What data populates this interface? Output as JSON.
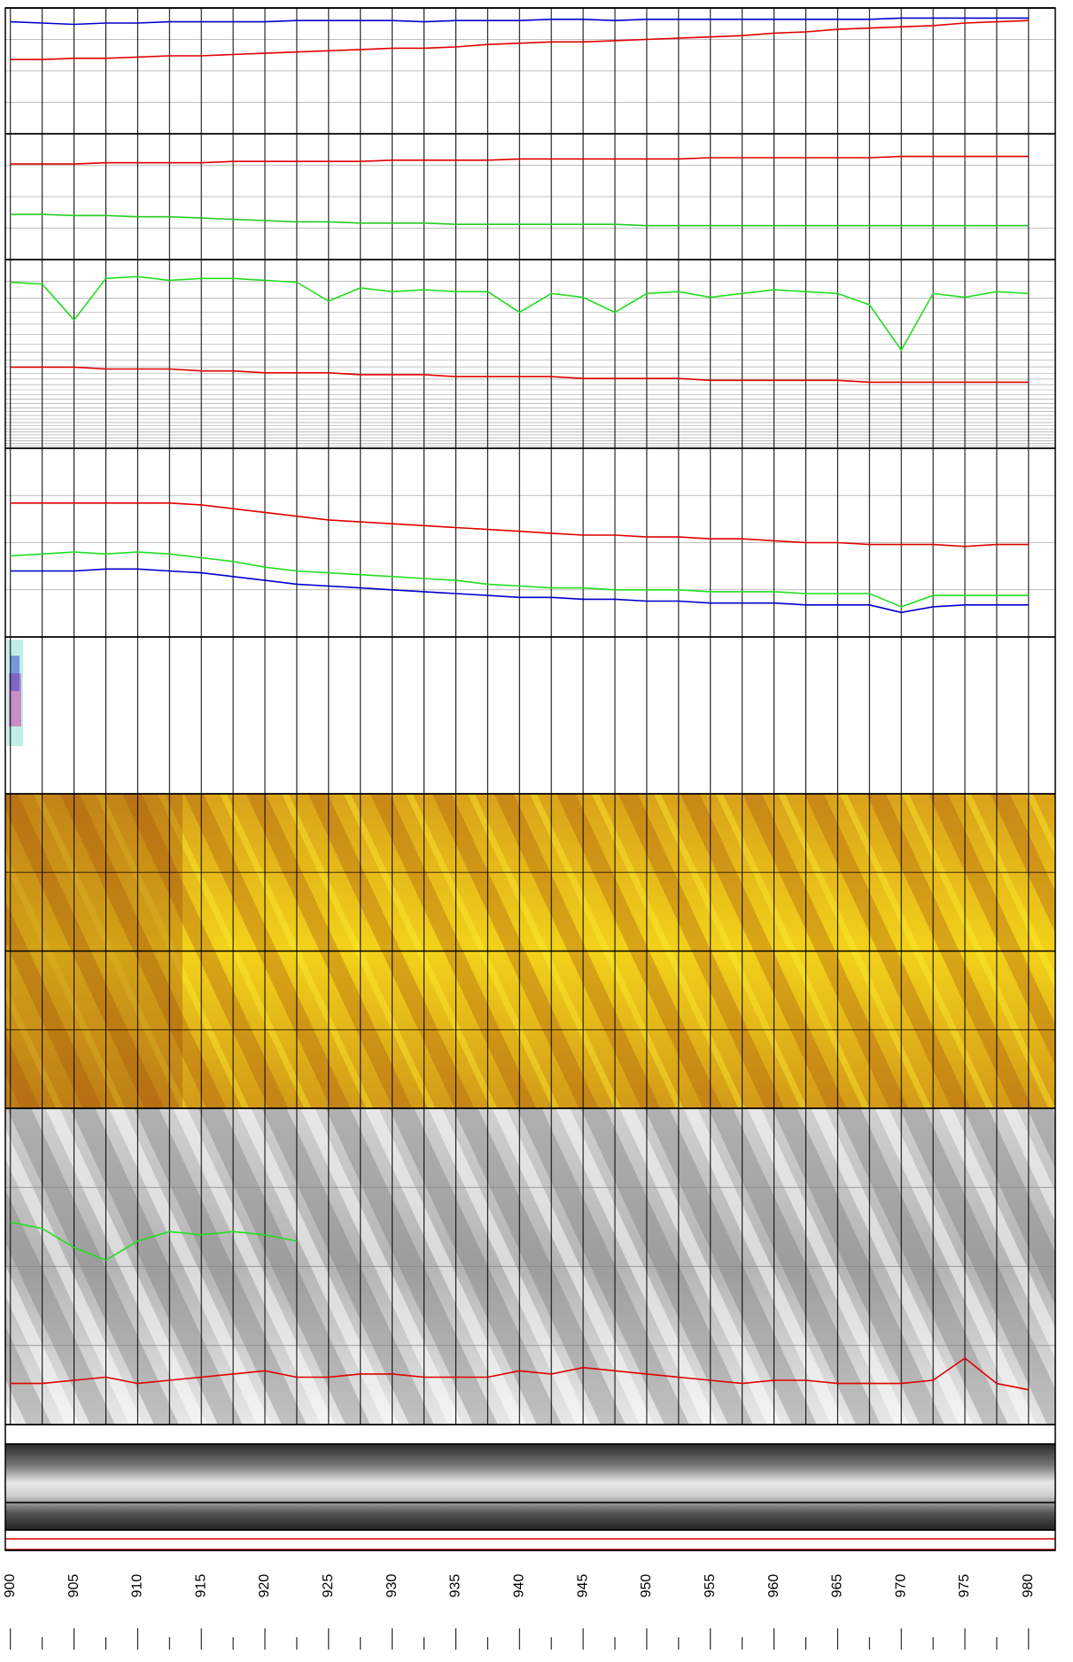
{
  "chart_data": {
    "type": "log",
    "xlim": [
      899.6,
      982.1
    ],
    "xticks": [
      900,
      905,
      910,
      915,
      920,
      925,
      930,
      935,
      940,
      945,
      950,
      955,
      960,
      965,
      970,
      975,
      980
    ],
    "xminorticks": [
      902.5,
      907.5,
      912.5,
      917.5,
      922.5,
      927.5,
      932.5,
      937.5,
      942.5,
      947.5,
      952.5,
      957.5,
      962.5,
      967.5,
      972.5,
      977.5
    ],
    "x": [
      900,
      902.5,
      905,
      907.5,
      910,
      912.5,
      915,
      917.5,
      920,
      922.5,
      925,
      927.5,
      930,
      932.5,
      935,
      937.5,
      940,
      942.5,
      945,
      947.5,
      950,
      952.5,
      955,
      957.5,
      960,
      962.5,
      965,
      967.5,
      970,
      972.5,
      975,
      977.5,
      980
    ],
    "tracks": [
      {
        "ylim": [
          0,
          100
        ],
        "series": [
          {
            "color": "#0000cc",
            "values": [
              89,
              88,
              87,
              88,
              88,
              89,
              89,
              89,
              89,
              90,
              90,
              90,
              90,
              89,
              90,
              90,
              90,
              91,
              91,
              90,
              91,
              91,
              91,
              91,
              91,
              91,
              91,
              91,
              92,
              92,
              92,
              92,
              92
            ]
          },
          {
            "color": "#e00000",
            "values": [
              59,
              59,
              60,
              60,
              61,
              62,
              62,
              63,
              64,
              65,
              66,
              67,
              68,
              68,
              69,
              71,
              72,
              73,
              73,
              74,
              75,
              76,
              77,
              78,
              80,
              81,
              83,
              84,
              85,
              86,
              88,
              89,
              90
            ]
          }
        ]
      },
      {
        "ylim": [
          0,
          100
        ],
        "series": [
          {
            "color": "#e00000",
            "values": [
              76,
              76,
              76,
              77,
              77,
              77,
              77,
              78,
              78,
              78,
              78,
              78,
              79,
              79,
              79,
              79,
              80,
              80,
              80,
              80,
              80,
              80,
              81,
              81,
              81,
              81,
              81,
              81,
              82,
              82,
              82,
              82,
              82
            ]
          },
          {
            "color": "#22cc22",
            "values": [
              36,
              36,
              35,
              35,
              34,
              34,
              33,
              32,
              31,
              30,
              30,
              29,
              29,
              29,
              28,
              28,
              28,
              28,
              28,
              28,
              27,
              27,
              27,
              27,
              27,
              27,
              27,
              27,
              27,
              27,
              27,
              27,
              27
            ]
          }
        ]
      },
      {
        "ylim": [
          0,
          100
        ],
        "series": [
          {
            "color": "#22dd22",
            "values": [
              88,
              87,
              68,
              90,
              91,
              89,
              90,
              90,
              89,
              88,
              78,
              85,
              83,
              84,
              83,
              83,
              72,
              82,
              80,
              72,
              82,
              83,
              80,
              82,
              84,
              83,
              82,
              76,
              52,
              82,
              80,
              83,
              82
            ]
          },
          {
            "color": "#e00000",
            "values": [
              43,
              43,
              43,
              42,
              42,
              42,
              41,
              41,
              40,
              40,
              40,
              39,
              39,
              39,
              38,
              38,
              38,
              38,
              37,
              37,
              37,
              37,
              36,
              36,
              36,
              36,
              36,
              35,
              35,
              35,
              35,
              35,
              35
            ]
          }
        ]
      },
      {
        "ylim": [
          0,
          100
        ],
        "series": [
          {
            "color": "#e00000",
            "values": [
              71,
              71,
              71,
              71,
              71,
              71,
              70,
              68,
              66,
              64,
              62,
              61,
              60,
              59,
              58,
              57,
              56,
              55,
              54,
              54,
              53,
              53,
              52,
              52,
              51,
              50,
              50,
              49,
              49,
              49,
              48,
              49,
              49
            ]
          },
          {
            "color": "#22dd22",
            "values": [
              43,
              44,
              45,
              44,
              45,
              44,
              42,
              40,
              37,
              35,
              34,
              33,
              32,
              31,
              30,
              28,
              27,
              26,
              26,
              25,
              25,
              25,
              24,
              24,
              24,
              23,
              23,
              23,
              16,
              22,
              22,
              22,
              22
            ]
          },
          {
            "color": "#0000cc",
            "values": [
              35,
              35,
              35,
              36,
              36,
              35,
              34,
              32,
              30,
              28,
              27,
              26,
              25,
              24,
              23,
              22,
              21,
              21,
              20,
              20,
              19,
              19,
              18,
              18,
              18,
              17,
              17,
              17,
              13,
              16,
              17,
              17,
              17
            ]
          }
        ]
      },
      {
        "ylim": [
          0,
          100
        ],
        "series": [
          {
            "color": "#22dd22",
            "values": [
              64,
              62,
              56,
              52,
              58,
              61,
              60,
              61,
              60,
              58,
              null,
              null,
              null,
              null,
              null,
              null,
              null,
              null,
              null,
              null,
              null,
              null,
              null,
              null,
              null,
              null,
              null,
              null,
              null,
              null,
              null,
              null,
              null
            ]
          },
          {
            "color": "#e00000",
            "values": [
              13,
              13,
              14,
              15,
              13,
              14,
              15,
              16,
              17,
              15,
              15,
              16,
              16,
              15,
              15,
              15,
              17,
              16,
              18,
              17,
              16,
              15,
              14,
              13,
              14,
              14,
              13,
              13,
              13,
              14,
              21,
              13,
              11
            ]
          }
        ]
      }
    ]
  }
}
